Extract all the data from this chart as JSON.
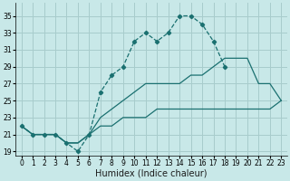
{
  "xlabel": "Humidex (Indice chaleur)",
  "bg_color": "#c8e8e8",
  "grid_color": "#a8cccc",
  "line_color": "#1a7070",
  "xlim": [
    -0.5,
    23.5
  ],
  "ylim": [
    18.5,
    36.5
  ],
  "xticks": [
    0,
    1,
    2,
    3,
    4,
    5,
    6,
    7,
    8,
    9,
    10,
    11,
    12,
    13,
    14,
    15,
    16,
    17,
    18,
    19,
    20,
    21,
    22,
    23
  ],
  "yticks": [
    19,
    21,
    23,
    25,
    27,
    29,
    31,
    33,
    35
  ],
  "line_top_x": [
    0,
    1,
    2,
    3,
    4,
    5,
    6,
    7,
    8,
    9,
    10,
    11,
    12,
    13,
    14,
    15,
    16,
    17,
    18
  ],
  "line_top_y": [
    22,
    21,
    21,
    21,
    20,
    19,
    21,
    26,
    28,
    29,
    32,
    33,
    32,
    33,
    35,
    35,
    34,
    32,
    29
  ],
  "line_mid_x": [
    0,
    1,
    2,
    3,
    4,
    5,
    6,
    7,
    8,
    9,
    10,
    11,
    12,
    13,
    14,
    15,
    16,
    17,
    18,
    19,
    20,
    21,
    22,
    23
  ],
  "line_mid_y": [
    22,
    21,
    21,
    21,
    20,
    20,
    21,
    23,
    24,
    25,
    26,
    27,
    27,
    27,
    27,
    28,
    28,
    29,
    30,
    30,
    30,
    27,
    27,
    25
  ],
  "line_bot_x": [
    0,
    1,
    2,
    3,
    4,
    5,
    6,
    7,
    8,
    9,
    10,
    11,
    12,
    13,
    14,
    15,
    16,
    17,
    18,
    19,
    20,
    21,
    22,
    23
  ],
  "line_bot_y": [
    22,
    21,
    21,
    21,
    20,
    20,
    21,
    22,
    22,
    23,
    23,
    23,
    24,
    24,
    24,
    24,
    24,
    24,
    24,
    24,
    24,
    24,
    24,
    25
  ]
}
